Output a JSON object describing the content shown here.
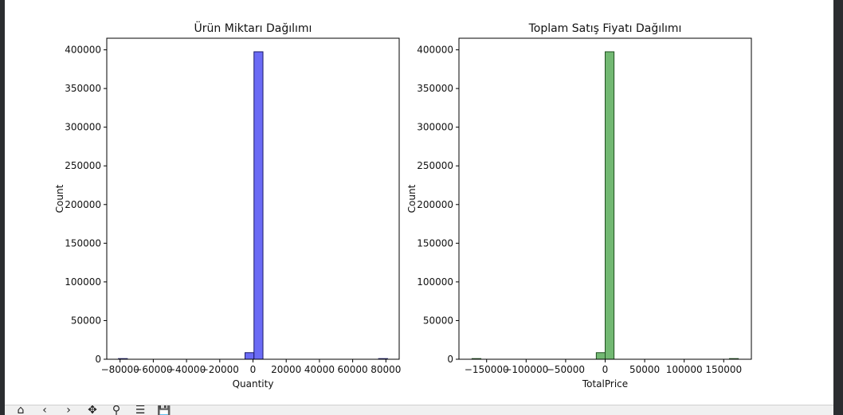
{
  "chart_data": [
    {
      "type": "histogram",
      "title": "Ürün Miktarı Dağılımı",
      "xlabel": "Quantity",
      "ylabel": "Count",
      "color": "#6b6bf5",
      "edge_color": "#1a1a6a",
      "xlim": [
        -88000,
        88000
      ],
      "ylim": [
        0,
        415000
      ],
      "xticks": [
        -80000,
        -60000,
        -40000,
        -20000,
        0,
        20000,
        40000,
        60000,
        80000
      ],
      "xtick_labels": [
        "−80000",
        "−60000",
        "−40000",
        "−20000",
        "0",
        "20000",
        "40000",
        "60000",
        "80000"
      ],
      "yticks": [
        0,
        50000,
        100000,
        150000,
        200000,
        250000,
        300000,
        350000,
        400000
      ],
      "ytick_labels": [
        "0",
        "50000",
        "100000",
        "150000",
        "200000",
        "250000",
        "300000",
        "350000",
        "400000"
      ],
      "bins": [
        {
          "x0": -80995,
          "x1": -75595,
          "count": 1
        },
        {
          "x0": -4795,
          "x1": 605,
          "count": 8500
        },
        {
          "x0": 605,
          "x1": 6005,
          "count": 397500
        },
        {
          "x0": 75595,
          "x1": 80995,
          "count": 1
        }
      ]
    },
    {
      "type": "histogram",
      "title": "Toplam Satış Fiyatı Dağılımı",
      "xlabel": "TotalPrice",
      "ylabel": "Count",
      "color": "#72b872",
      "edge_color": "#1f4f1f",
      "xlim": [
        -185000,
        185000
      ],
      "ylim": [
        0,
        415000
      ],
      "xticks": [
        -150000,
        -100000,
        -50000,
        0,
        50000,
        100000,
        150000
      ],
      "xtick_labels": [
        "−150000",
        "−100000",
        "−50000",
        "0",
        "50000",
        "100000",
        "150000"
      ],
      "yticks": [
        0,
        50000,
        100000,
        150000,
        200000,
        250000,
        300000,
        350000,
        400000
      ],
      "ytick_labels": [
        "0",
        "50000",
        "100000",
        "150000",
        "200000",
        "250000",
        "300000",
        "350000",
        "400000"
      ],
      "bins": [
        {
          "x0": -168470,
          "x1": -157240,
          "count": 1
        },
        {
          "x0": -11230,
          "x1": 0,
          "count": 8500
        },
        {
          "x0": 0,
          "x1": 11230,
          "count": 397500
        },
        {
          "x0": 157240,
          "x1": 168470,
          "count": 1
        }
      ]
    }
  ],
  "toolbar": {
    "home_icon": "⌂",
    "back_icon": "‹",
    "forward_icon": "›",
    "pan_icon": "✥",
    "zoom_icon": "⚲",
    "configure_icon": "☰",
    "save_icon": "💾"
  }
}
